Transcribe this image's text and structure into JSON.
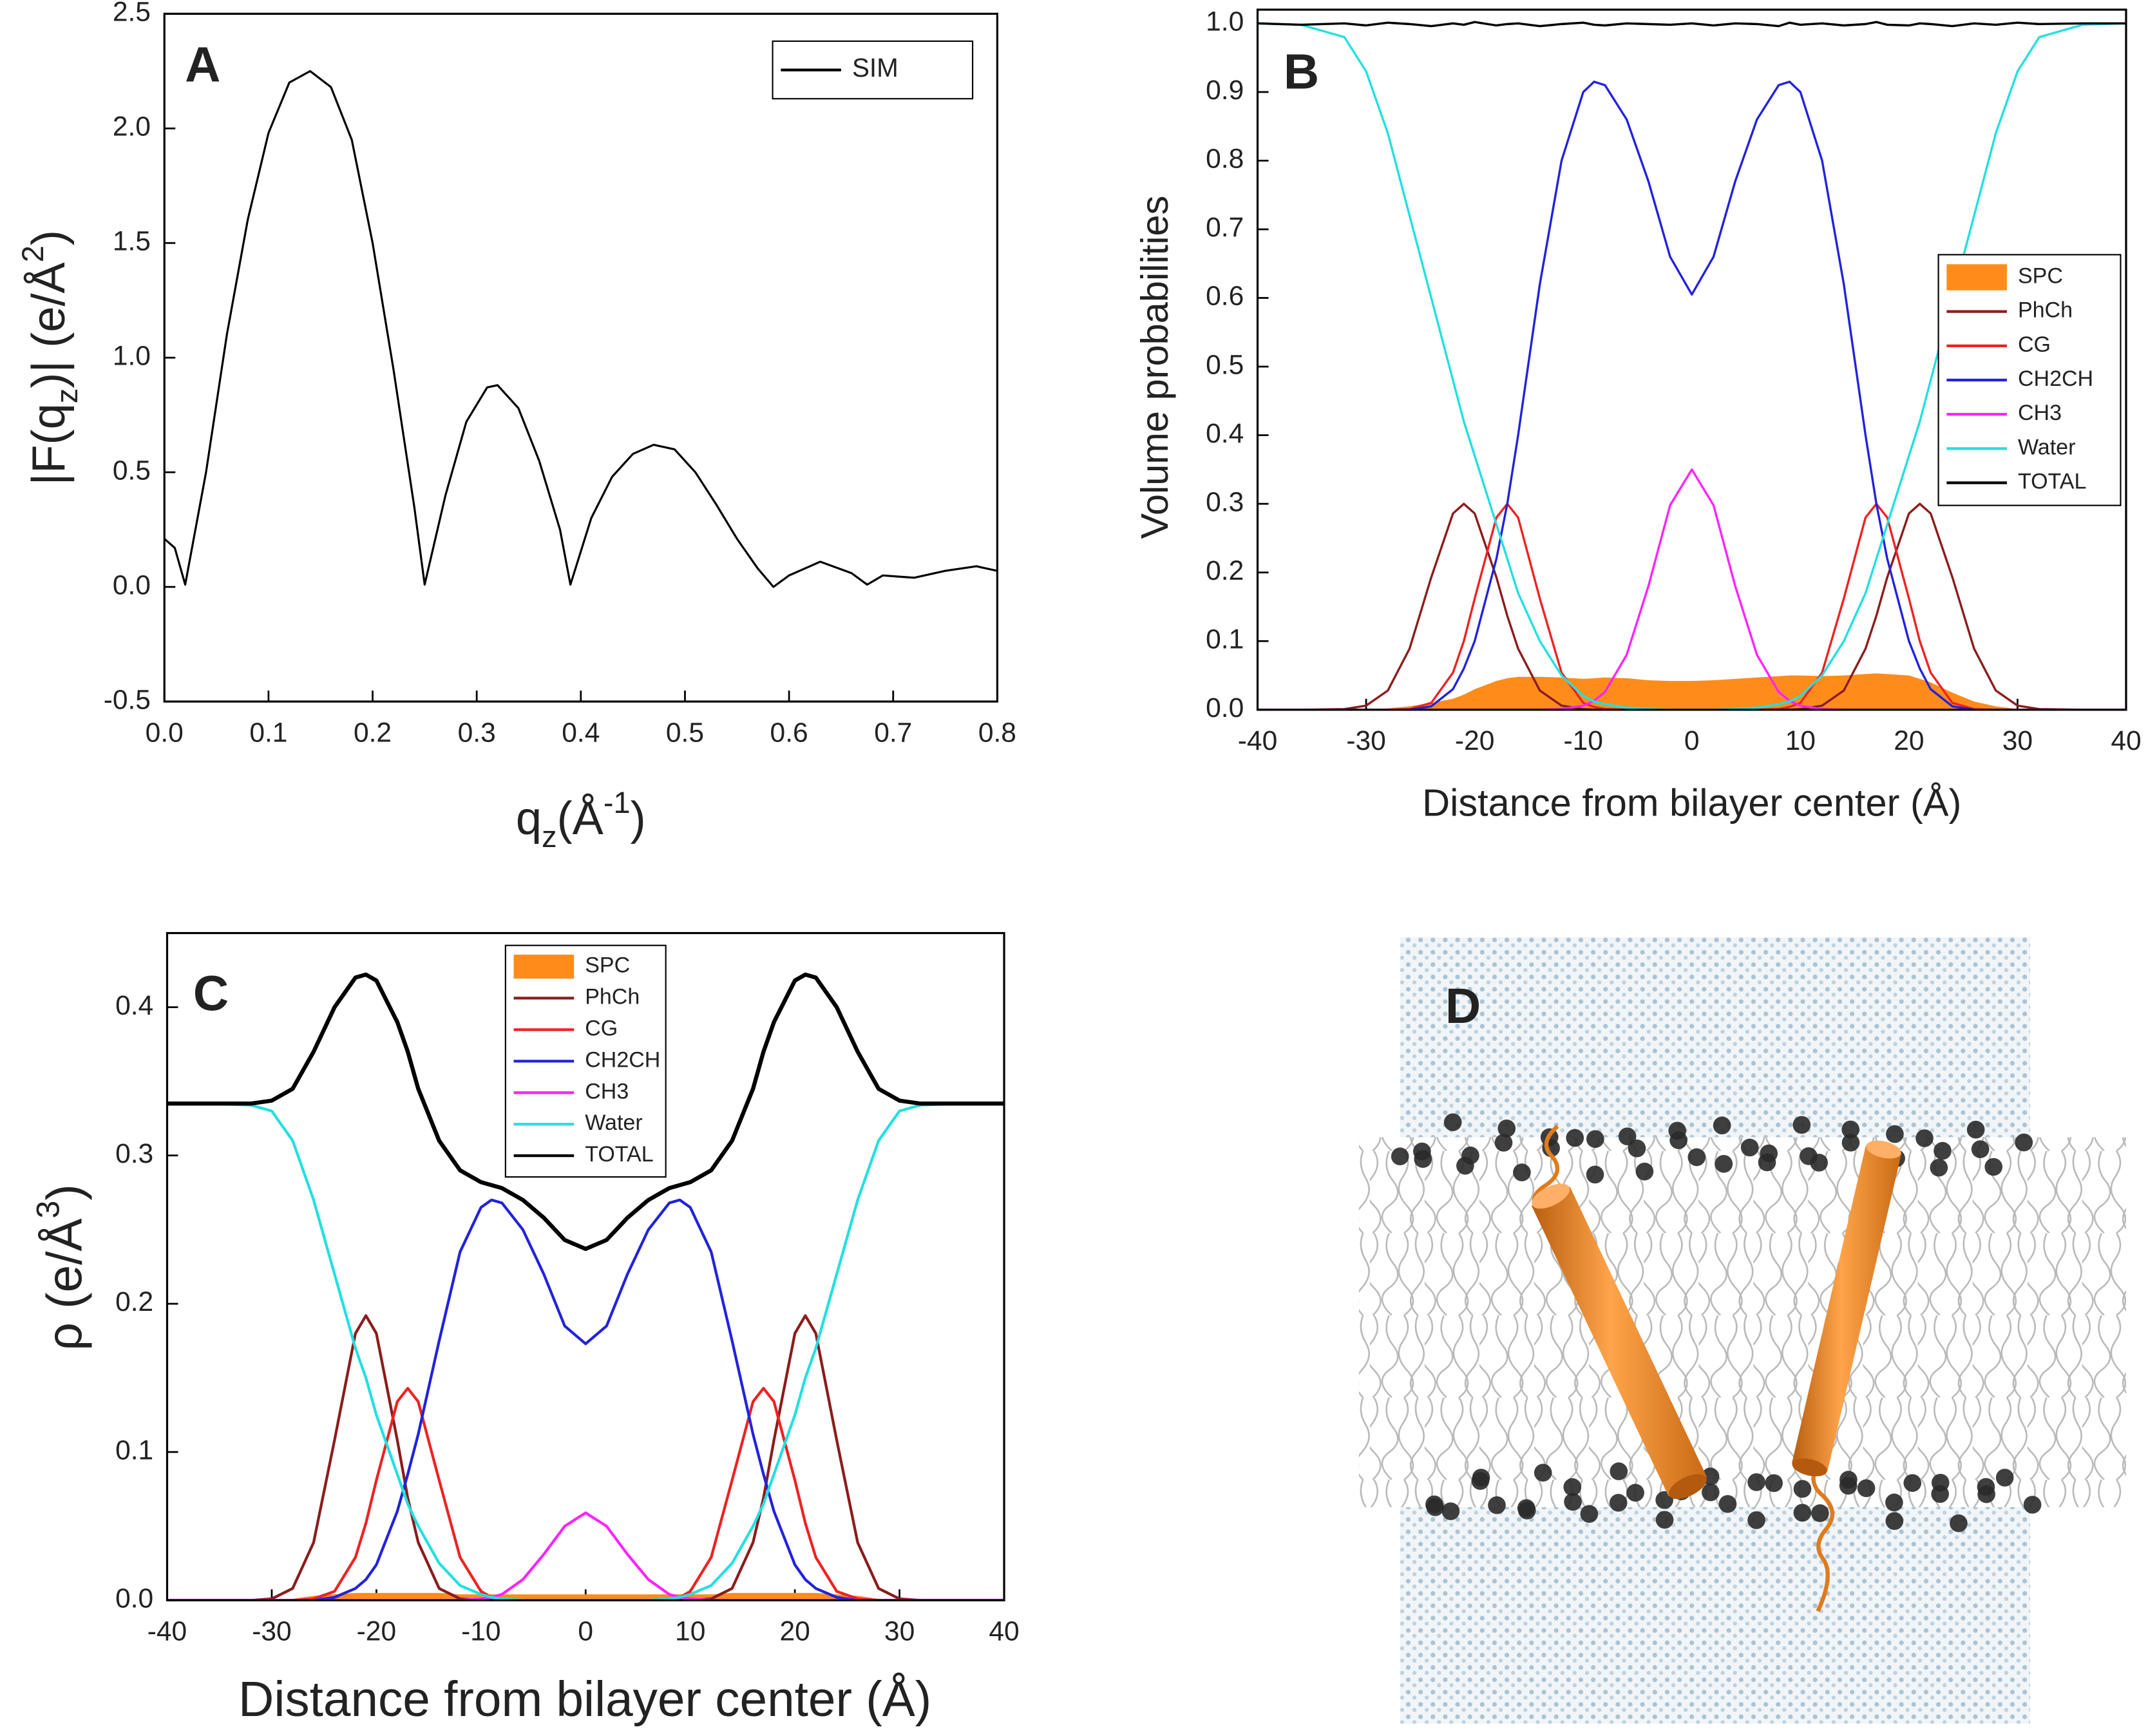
{
  "chart_data": [
    {
      "type": "line",
      "panel_label": "A",
      "x": [
        0,
        0.01,
        0.02,
        0.04,
        0.06,
        0.08,
        0.1,
        0.12,
        0.14,
        0.16,
        0.18,
        0.2,
        0.22,
        0.24,
        0.25,
        0.27,
        0.29,
        0.31,
        0.32,
        0.34,
        0.36,
        0.38,
        0.39,
        0.41,
        0.43,
        0.45,
        0.47,
        0.49,
        0.51,
        0.53,
        0.55,
        0.57,
        0.585,
        0.6,
        0.63,
        0.66,
        0.675,
        0.69,
        0.72,
        0.75,
        0.78,
        0.8
      ],
      "series": [
        {
          "name": "SIM",
          "color": "#000000",
          "values": [
            0.21,
            0.17,
            0.01,
            0.5,
            1.1,
            1.6,
            1.98,
            2.2,
            2.25,
            2.18,
            1.95,
            1.5,
            0.95,
            0.35,
            0.01,
            0.4,
            0.72,
            0.87,
            0.88,
            0.78,
            0.55,
            0.25,
            0.01,
            0.3,
            0.48,
            0.58,
            0.62,
            0.6,
            0.5,
            0.36,
            0.21,
            0.08,
            0,
            0.05,
            0.11,
            0.06,
            0.01,
            0.05,
            0.04,
            0.07,
            0.09,
            0.07
          ]
        }
      ],
      "xlabel": [
        {
          "text": "q"
        },
        {
          "text": "z",
          "script": "sub"
        },
        {
          "text": "(Å"
        },
        {
          "text": "-1",
          "script": "super"
        },
        {
          "text": ")"
        }
      ],
      "ylabel": [
        {
          "text": "|F(q"
        },
        {
          "text": "z",
          "script": "sub"
        },
        {
          "text": ")| (e/Å"
        },
        {
          "text": "2",
          "script": "super"
        },
        {
          "text": ")"
        }
      ],
      "xlim": [
        0,
        0.8
      ],
      "ylim": [
        -0.5,
        2.5
      ],
      "xticks": [
        {
          "value": 0,
          "label": "0.0"
        },
        0.1,
        0.2,
        0.3,
        0.4,
        0.5,
        0.6,
        0.7,
        0.8
      ],
      "yticks": [
        -0.5,
        {
          "value": 0,
          "label": "0.0"
        },
        0.5,
        {
          "value": 1,
          "label": "1.0"
        },
        1.5,
        {
          "value": 2,
          "label": "2.0"
        },
        2.5
      ],
      "legend": "upper right"
    },
    {
      "type": "line",
      "panel_label": "B",
      "x": [
        -40,
        -36,
        -32,
        -30,
        -28,
        -26,
        -24,
        -22,
        -21,
        -20,
        -18,
        -17,
        -16,
        -14,
        -12,
        -10,
        -9,
        -8,
        -6,
        -4,
        -2,
        0,
        2,
        4,
        6,
        8,
        9,
        10,
        12,
        14,
        16,
        17,
        18,
        20,
        21,
        22,
        24,
        26,
        28,
        30,
        32,
        36,
        40
      ],
      "series": [
        {
          "name": "SPC",
          "type": "area",
          "color": "#ff8c1a",
          "values": [
            0,
            0,
            0,
            0,
            0.002,
            0.005,
            0.01,
            0.016,
            0.022,
            0.03,
            0.042,
            0.046,
            0.048,
            0.048,
            0.047,
            0.045,
            0.046,
            0.047,
            0.046,
            0.043,
            0.042,
            0.042,
            0.043,
            0.045,
            0.047,
            0.049,
            0.05,
            0.05,
            0.049,
            0.05,
            0.052,
            0.053,
            0.052,
            0.05,
            0.045,
            0.04,
            0.025,
            0.012,
            0.005,
            0.001,
            0,
            0,
            0
          ]
        },
        {
          "name": "PhCh",
          "color": "#8b1c1c",
          "values": [
            0,
            0,
            0.001,
            0.006,
            0.028,
            0.089,
            0.193,
            0.286,
            0.3,
            0.286,
            0.193,
            0.137,
            0.089,
            0.028,
            0.006,
            0.001,
            0,
            0,
            0,
            0,
            0,
            0,
            0,
            0,
            0,
            0,
            0,
            0.001,
            0.006,
            0.028,
            0.089,
            0.137,
            0.193,
            0.286,
            0.3,
            0.286,
            0.193,
            0.089,
            0.028,
            0.006,
            0.001,
            0,
            0
          ]
        },
        {
          "name": "CG",
          "color": "#ee2222",
          "values": [
            0,
            0,
            0,
            0,
            0,
            0.001,
            0.01,
            0.054,
            0.1,
            0.162,
            0.28,
            0.3,
            0.28,
            0.162,
            0.054,
            0.01,
            0.004,
            0.001,
            0,
            0,
            0,
            0,
            0,
            0,
            0,
            0.001,
            0.004,
            0.01,
            0.054,
            0.162,
            0.28,
            0.3,
            0.28,
            0.162,
            0.1,
            0.054,
            0.01,
            0.001,
            0,
            0,
            0,
            0,
            0
          ]
        },
        {
          "name": "CH2CH",
          "color": "#2222dd",
          "values": [
            0,
            0,
            0,
            0,
            0,
            0,
            0.005,
            0.03,
            0.06,
            0.1,
            0.22,
            0.3,
            0.4,
            0.62,
            0.8,
            0.9,
            0.915,
            0.91,
            0.86,
            0.77,
            0.66,
            0.605,
            0.66,
            0.77,
            0.86,
            0.91,
            0.915,
            0.9,
            0.8,
            0.62,
            0.4,
            0.3,
            0.22,
            0.1,
            0.06,
            0.03,
            0.005,
            0,
            0,
            0,
            0,
            0,
            0
          ]
        },
        {
          "name": "CH3",
          "color": "#ff22ff",
          "values": [
            0,
            0,
            0,
            0,
            0,
            0,
            0,
            0,
            0,
            0,
            0,
            0,
            0,
            0,
            0.001,
            0.006,
            0.013,
            0.026,
            0.08,
            0.18,
            0.298,
            0.35,
            0.298,
            0.18,
            0.08,
            0.026,
            0.013,
            0.006,
            0.001,
            0,
            0,
            0,
            0,
            0,
            0,
            0,
            0,
            0,
            0,
            0,
            0,
            0,
            0
          ]
        },
        {
          "name": "Water",
          "color": "#22e0e0",
          "values": [
            1.0,
            0.998,
            0.98,
            0.93,
            0.84,
            0.72,
            0.6,
            0.48,
            0.42,
            0.37,
            0.27,
            0.22,
            0.17,
            0.1,
            0.05,
            0.02,
            0.012,
            0.008,
            0.003,
            0.001,
            0,
            0,
            0,
            0.001,
            0.003,
            0.008,
            0.012,
            0.02,
            0.05,
            0.1,
            0.17,
            0.22,
            0.27,
            0.37,
            0.42,
            0.48,
            0.6,
            0.72,
            0.84,
            0.93,
            0.98,
            0.998,
            1.0
          ]
        },
        {
          "name": "TOTAL",
          "color": "#000000",
          "values": [
            1.0,
            0.998,
            1.0,
            0.997,
            1.001,
            0.999,
            0.996,
            1.0,
            0.998,
            1.002,
            0.997,
            0.999,
            1.0,
            0.996,
            0.999,
            1.001,
            0.998,
            0.997,
            1.0,
            0.999,
            0.998,
            1.0,
            0.997,
            1.0,
            0.999,
            0.996,
            1.001,
            0.998,
            1.0,
            0.997,
            0.999,
            1.002,
            0.998,
            0.997,
            1.0,
            0.999,
            0.996,
            1.0,
            0.998,
            1.001,
            0.999,
            1.0,
            1.0
          ]
        }
      ],
      "xlabel": [
        {
          "text": "Distance from bilayer center (Å)"
        }
      ],
      "ylabel": [
        {
          "text": "Volume probabilities"
        }
      ],
      "xlim": [
        -40,
        40
      ],
      "ylim": [
        0,
        1.02
      ],
      "xticks": [
        -40,
        -30,
        -20,
        -10,
        0,
        10,
        20,
        30,
        40
      ],
      "yticks": [
        {
          "value": 0,
          "label": "0.0"
        },
        0.1,
        0.2,
        0.3,
        0.4,
        0.5,
        0.6,
        0.7,
        0.8,
        0.9,
        {
          "value": 1,
          "label": "1.0"
        }
      ],
      "legend": "center right"
    },
    {
      "type": "line",
      "panel_label": "C",
      "x": [
        -40,
        -36,
        -32,
        -30,
        -28,
        -26,
        -24,
        -22,
        -21,
        -20,
        -18,
        -17,
        -16,
        -14,
        -12,
        -10,
        -9,
        -8,
        -6,
        -4,
        -2,
        0,
        2,
        4,
        6,
        8,
        9,
        10,
        12,
        14,
        16,
        17,
        18,
        20,
        21,
        22,
        24,
        26,
        28,
        30,
        32,
        36,
        40
      ],
      "series": [
        {
          "name": "SPC",
          "type": "area",
          "color": "#ff8c1a",
          "values": [
            0,
            0,
            0,
            0,
            0.001,
            0.003,
            0.004,
            0.005,
            0.005,
            0.005,
            0.005,
            0.005,
            0.005,
            0.005,
            0.004,
            0.004,
            0.004,
            0.004,
            0.004,
            0.004,
            0.004,
            0.004,
            0.004,
            0.004,
            0.004,
            0.004,
            0.004,
            0.004,
            0.004,
            0.005,
            0.005,
            0.005,
            0.005,
            0.005,
            0.005,
            0.005,
            0.004,
            0.003,
            0.001,
            0,
            0,
            0,
            0
          ]
        },
        {
          "name": "PhCh",
          "color": "#8b1c1c",
          "values": [
            0,
            0,
            0,
            0.001,
            0.008,
            0.039,
            0.108,
            0.18,
            0.192,
            0.18,
            0.108,
            0.069,
            0.039,
            0.008,
            0.001,
            0,
            0,
            0,
            0,
            0,
            0,
            0,
            0,
            0,
            0,
            0,
            0,
            0,
            0.001,
            0.008,
            0.039,
            0.069,
            0.108,
            0.18,
            0.192,
            0.18,
            0.108,
            0.039,
            0.008,
            0.001,
            0,
            0,
            0
          ]
        },
        {
          "name": "CG",
          "color": "#ee2222",
          "values": [
            0,
            0,
            0,
            0,
            0,
            0.001,
            0.006,
            0.029,
            0.052,
            0.081,
            0.134,
            0.143,
            0.134,
            0.081,
            0.029,
            0.006,
            0.002,
            0.001,
            0,
            0,
            0,
            0,
            0,
            0,
            0,
            0.001,
            0.002,
            0.006,
            0.029,
            0.081,
            0.134,
            0.143,
            0.134,
            0.081,
            0.052,
            0.029,
            0.006,
            0.001,
            0,
            0,
            0,
            0,
            0
          ]
        },
        {
          "name": "CH2CH",
          "color": "#2222dd",
          "values": [
            0,
            0,
            0,
            0,
            0,
            0,
            0.002,
            0.008,
            0.014,
            0.024,
            0.06,
            0.085,
            0.112,
            0.175,
            0.235,
            0.265,
            0.27,
            0.268,
            0.25,
            0.22,
            0.185,
            0.173,
            0.185,
            0.22,
            0.25,
            0.268,
            0.27,
            0.265,
            0.235,
            0.175,
            0.112,
            0.085,
            0.06,
            0.024,
            0.014,
            0.008,
            0.002,
            0,
            0,
            0,
            0,
            0,
            0
          ]
        },
        {
          "name": "CH3",
          "color": "#ff22ff",
          "values": [
            0,
            0,
            0,
            0,
            0,
            0,
            0,
            0,
            0,
            0,
            0,
            0,
            0,
            0,
            0,
            0.001,
            0.002,
            0.004,
            0.014,
            0.031,
            0.05,
            0.059,
            0.05,
            0.031,
            0.014,
            0.004,
            0.002,
            0.001,
            0,
            0,
            0,
            0,
            0,
            0,
            0,
            0,
            0,
            0,
            0,
            0,
            0,
            0,
            0
          ]
        },
        {
          "name": "Water",
          "color": "#22e0e0",
          "values": [
            0.335,
            0.335,
            0.334,
            0.33,
            0.31,
            0.27,
            0.22,
            0.17,
            0.15,
            0.125,
            0.085,
            0.065,
            0.05,
            0.025,
            0.01,
            0.004,
            0.002,
            0.001,
            0,
            0,
            0,
            0,
            0,
            0,
            0,
            0.001,
            0.002,
            0.004,
            0.01,
            0.025,
            0.05,
            0.065,
            0.085,
            0.125,
            0.15,
            0.17,
            0.22,
            0.27,
            0.31,
            0.33,
            0.334,
            0.335,
            0.335
          ]
        },
        {
          "name": "TOTAL",
          "color": "#000000",
          "values": [
            0.335,
            0.335,
            0.335,
            0.337,
            0.345,
            0.37,
            0.4,
            0.42,
            0.422,
            0.418,
            0.39,
            0.37,
            0.345,
            0.31,
            0.29,
            0.282,
            0.28,
            0.278,
            0.27,
            0.258,
            0.243,
            0.237,
            0.243,
            0.258,
            0.27,
            0.278,
            0.28,
            0.282,
            0.29,
            0.31,
            0.345,
            0.37,
            0.39,
            0.418,
            0.422,
            0.42,
            0.4,
            0.37,
            0.345,
            0.337,
            0.335,
            0.335,
            0.335
          ]
        }
      ],
      "xlabel": [
        {
          "text": "Distance from bilayer center (Å)"
        }
      ],
      "ylabel": [
        {
          "text": "ρ (e/Å"
        },
        {
          "text": "3",
          "script": "super"
        },
        {
          "text": ")"
        }
      ],
      "xlim": [
        -40,
        40
      ],
      "ylim": [
        0,
        0.45
      ],
      "xticks": [
        -40,
        -30,
        -20,
        -10,
        0,
        10,
        20,
        30,
        40
      ],
      "yticks": [
        {
          "value": 0,
          "label": "0.0"
        },
        0.1,
        0.2,
        0.3,
        0.4
      ],
      "legend": "upper center"
    }
  ],
  "panel_d": {
    "label": "D"
  }
}
